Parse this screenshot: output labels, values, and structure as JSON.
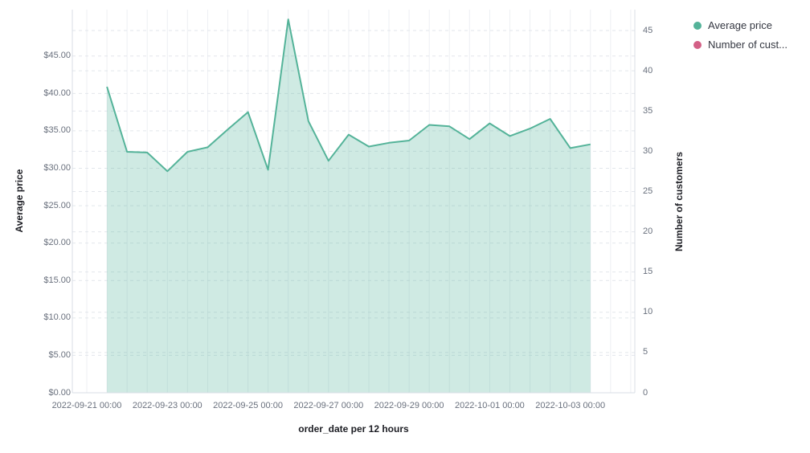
{
  "legend": {
    "items": [
      {
        "label": "Average price",
        "color": "#54B399"
      },
      {
        "label": "Number of cust...",
        "color": "#D36086"
      }
    ]
  },
  "chart_data": {
    "type": "area",
    "title": "",
    "xlabel": "order_date per 12 hours",
    "ylabel_left": "Average price",
    "ylabel_right": "Number of customers",
    "grid": "on",
    "legend_position": "top-right",
    "x_tick_labels": [
      "2022-09-21 00:00",
      "2022-09-23 00:00",
      "2022-09-25 00:00",
      "2022-09-27 00:00",
      "2022-09-29 00:00",
      "2022-10-01 00:00",
      "2022-10-03 00:00"
    ],
    "left_tick_labels": [
      "$0.00",
      "$5.00",
      "$10.00",
      "$15.00",
      "$20.00",
      "$25.00",
      "$30.00",
      "$35.00",
      "$40.00",
      "$45.00"
    ],
    "left_tick_values": [
      0,
      5,
      10,
      15,
      20,
      25,
      30,
      35,
      40,
      45
    ],
    "right_tick_labels": [
      "0",
      "5",
      "10",
      "15",
      "20",
      "25",
      "30",
      "35",
      "40",
      "45"
    ],
    "right_tick_values": [
      0,
      5,
      10,
      15,
      20,
      25,
      30,
      35,
      40,
      45
    ],
    "ylim_left": [
      0,
      51.2
    ],
    "ylim_right": [
      0,
      47.6
    ],
    "line_color": "#54B399",
    "fill_color": "rgba(84,179,153,0.28)",
    "series": [
      {
        "name": "Average price",
        "axis": "left",
        "color": "#54B399",
        "x": [
          "2022-09-21 12:00",
          "2022-09-22 00:00",
          "2022-09-22 12:00",
          "2022-09-23 00:00",
          "2022-09-23 12:00",
          "2022-09-24 00:00",
          "2022-09-24 12:00",
          "2022-09-25 00:00",
          "2022-09-25 12:00",
          "2022-09-26 00:00",
          "2022-09-26 12:00",
          "2022-09-27 00:00",
          "2022-09-27 12:00",
          "2022-09-28 00:00",
          "2022-09-28 12:00",
          "2022-09-29 00:00",
          "2022-09-29 12:00",
          "2022-09-30 00:00",
          "2022-09-30 12:00",
          "2022-10-01 00:00",
          "2022-10-01 12:00",
          "2022-10-02 00:00",
          "2022-10-02 12:00",
          "2022-10-03 00:00",
          "2022-10-03 12:00"
        ],
        "values": [
          40.9,
          32.2,
          32.1,
          29.6,
          32.2,
          32.8,
          35.2,
          37.5,
          29.8,
          49.9,
          36.3,
          31.0,
          34.5,
          32.9,
          33.4,
          33.7,
          35.8,
          35.6,
          33.9,
          36.0,
          34.3,
          35.3,
          36.6,
          32.7,
          33.2
        ]
      },
      {
        "name": "Number of customers",
        "axis": "right",
        "color": "#D36086",
        "x": [],
        "values": []
      }
    ]
  }
}
